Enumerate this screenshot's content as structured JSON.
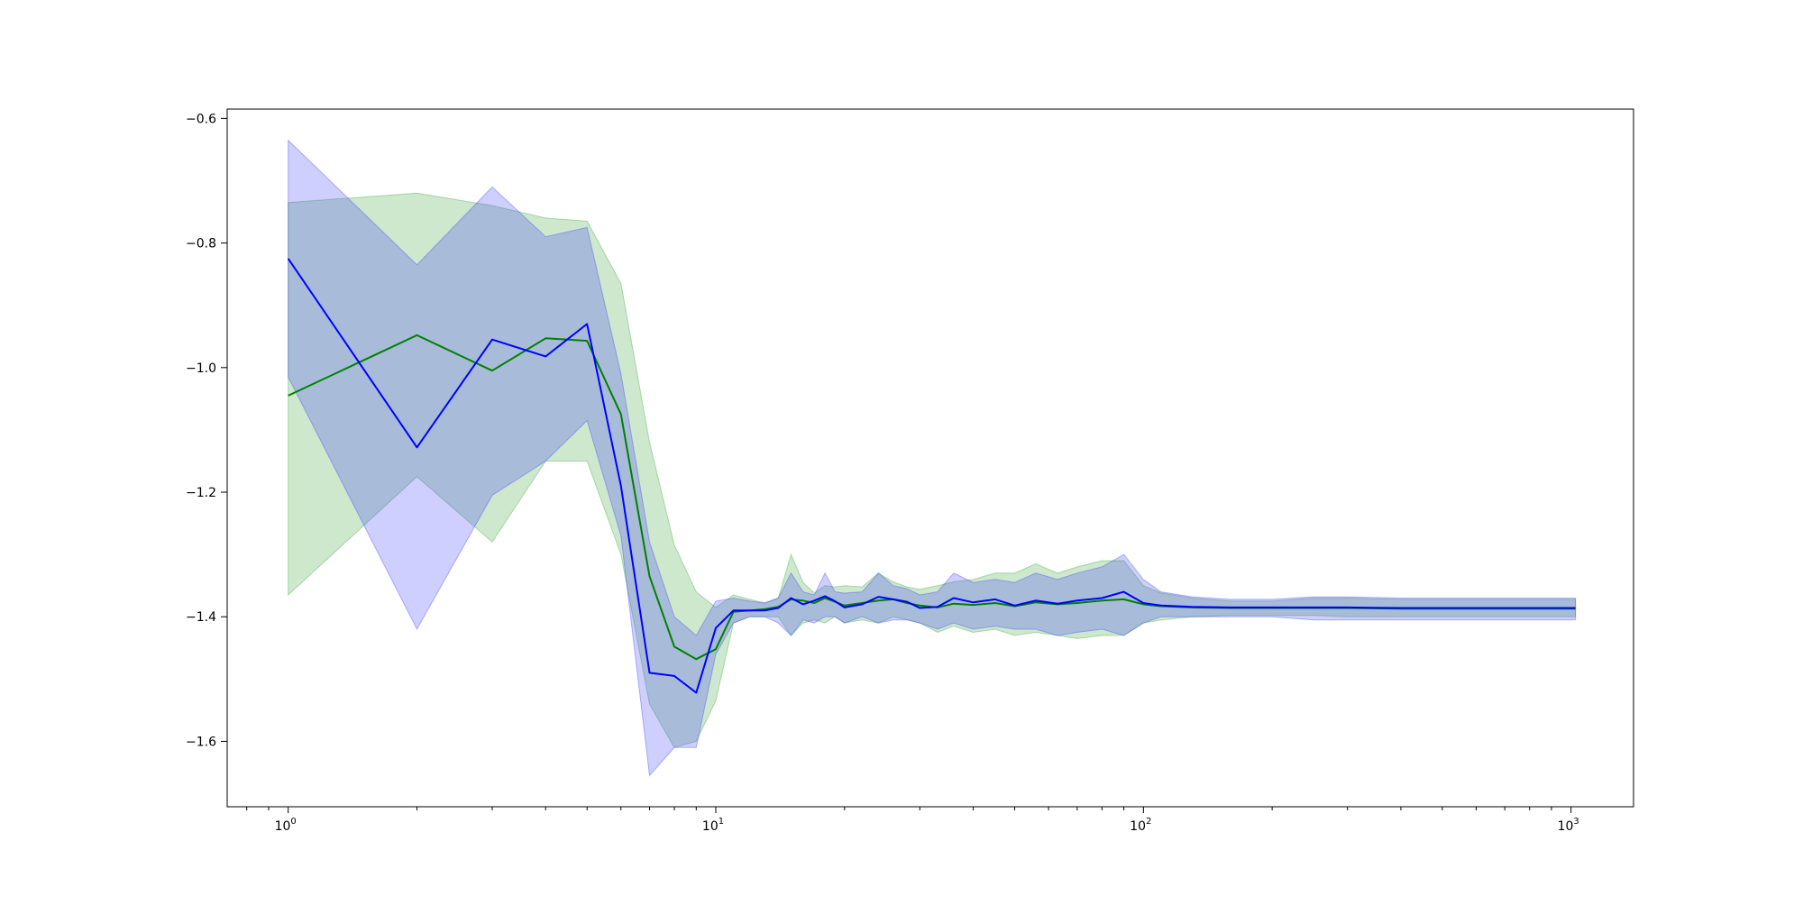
{
  "chart_data": {
    "type": "line",
    "title": "",
    "xlabel": "",
    "ylabel": "",
    "xscale": "log",
    "xlim": [
      0.72,
      1400
    ],
    "ylim": [
      -1.705,
      -0.585
    ],
    "grid": false,
    "legend": "none",
    "x_ticks": [
      {
        "base": "10",
        "exp": "0",
        "value": 1
      },
      {
        "base": "10",
        "exp": "1",
        "value": 10
      },
      {
        "base": "10",
        "exp": "2",
        "value": 100
      },
      {
        "base": "10",
        "exp": "3",
        "value": 1000
      }
    ],
    "y_ticks": [
      {
        "label": "−0.6",
        "value": -0.6
      },
      {
        "label": "−0.8",
        "value": -0.8
      },
      {
        "label": "−1.0",
        "value": -1.0
      },
      {
        "label": "−1.2",
        "value": -1.2
      },
      {
        "label": "−1.4",
        "value": -1.4
      },
      {
        "label": "−1.6",
        "value": -1.6
      }
    ],
    "series": [
      {
        "color": "#008000",
        "fill_color": "#2ca02c",
        "x": [
          1,
          2,
          3,
          4,
          5,
          6,
          7,
          8,
          9,
          10,
          11,
          12,
          13,
          14,
          15,
          16,
          17,
          18,
          19,
          20,
          22,
          24,
          26,
          28,
          30,
          33,
          36,
          40,
          45,
          50,
          56,
          63,
          70,
          80,
          90,
          100,
          110,
          130,
          160,
          200,
          250,
          300,
          400,
          500,
          600,
          700,
          800,
          900,
          1024
        ],
        "mean": [
          -1.045,
          -0.948,
          -1.005,
          -0.953,
          -0.957,
          -1.075,
          -1.335,
          -1.448,
          -1.468,
          -1.452,
          -1.392,
          -1.39,
          -1.388,
          -1.384,
          -1.372,
          -1.374,
          -1.378,
          -1.37,
          -1.376,
          -1.382,
          -1.378,
          -1.374,
          -1.372,
          -1.378,
          -1.382,
          -1.385,
          -1.379,
          -1.381,
          -1.378,
          -1.383,
          -1.377,
          -1.38,
          -1.378,
          -1.374,
          -1.372,
          -1.38,
          -1.383,
          -1.385,
          -1.386,
          -1.386,
          -1.386,
          -1.386,
          -1.387,
          -1.387,
          -1.387,
          -1.387,
          -1.387,
          -1.387,
          -1.387
        ],
        "upper": [
          -0.735,
          -0.72,
          -0.74,
          -0.76,
          -0.765,
          -0.865,
          -1.12,
          -1.285,
          -1.36,
          -1.385,
          -1.365,
          -1.372,
          -1.378,
          -1.37,
          -1.3,
          -1.345,
          -1.362,
          -1.35,
          -1.352,
          -1.35,
          -1.352,
          -1.33,
          -1.344,
          -1.352,
          -1.356,
          -1.35,
          -1.344,
          -1.34,
          -1.33,
          -1.33,
          -1.315,
          -1.33,
          -1.32,
          -1.31,
          -1.31,
          -1.35,
          -1.362,
          -1.37,
          -1.375,
          -1.375,
          -1.37,
          -1.37,
          -1.372,
          -1.372,
          -1.372,
          -1.372,
          -1.372,
          -1.372,
          -1.372
        ],
        "lower": [
          -1.365,
          -1.175,
          -1.28,
          -1.15,
          -1.15,
          -1.3,
          -1.54,
          -1.61,
          -1.6,
          -1.535,
          -1.41,
          -1.4,
          -1.4,
          -1.4,
          -1.43,
          -1.41,
          -1.405,
          -1.41,
          -1.4,
          -1.41,
          -1.405,
          -1.41,
          -1.4,
          -1.405,
          -1.41,
          -1.425,
          -1.415,
          -1.425,
          -1.42,
          -1.43,
          -1.425,
          -1.43,
          -1.435,
          -1.43,
          -1.43,
          -1.41,
          -1.405,
          -1.4,
          -1.398,
          -1.398,
          -1.398,
          -1.4,
          -1.4,
          -1.4,
          -1.4,
          -1.4,
          -1.4,
          -1.4,
          -1.4
        ]
      },
      {
        "color": "#0000ff",
        "fill_color": "#3333ff",
        "x": [
          1,
          2,
          3,
          4,
          5,
          6,
          7,
          8,
          9,
          10,
          11,
          12,
          13,
          14,
          15,
          16,
          17,
          18,
          19,
          20,
          22,
          24,
          26,
          28,
          30,
          33,
          36,
          40,
          45,
          50,
          56,
          63,
          70,
          80,
          90,
          100,
          110,
          130,
          160,
          200,
          250,
          300,
          400,
          500,
          600,
          700,
          800,
          900,
          1024
        ],
        "mean": [
          -0.825,
          -1.128,
          -0.955,
          -0.982,
          -0.93,
          -1.19,
          -1.49,
          -1.495,
          -1.522,
          -1.418,
          -1.39,
          -1.39,
          -1.39,
          -1.386,
          -1.37,
          -1.38,
          -1.374,
          -1.367,
          -1.375,
          -1.385,
          -1.38,
          -1.368,
          -1.372,
          -1.376,
          -1.386,
          -1.384,
          -1.37,
          -1.377,
          -1.372,
          -1.382,
          -1.374,
          -1.379,
          -1.374,
          -1.37,
          -1.36,
          -1.378,
          -1.382,
          -1.384,
          -1.385,
          -1.385,
          -1.385,
          -1.385,
          -1.386,
          -1.386,
          -1.386,
          -1.386,
          -1.386,
          -1.386,
          -1.386
        ],
        "upper": [
          -0.635,
          -0.835,
          -0.71,
          -0.79,
          -0.775,
          -1.01,
          -1.28,
          -1.4,
          -1.43,
          -1.375,
          -1.37,
          -1.375,
          -1.378,
          -1.37,
          -1.33,
          -1.36,
          -1.365,
          -1.33,
          -1.36,
          -1.362,
          -1.36,
          -1.33,
          -1.35,
          -1.355,
          -1.365,
          -1.36,
          -1.33,
          -1.345,
          -1.34,
          -1.345,
          -1.33,
          -1.34,
          -1.33,
          -1.32,
          -1.3,
          -1.34,
          -1.36,
          -1.368,
          -1.372,
          -1.372,
          -1.368,
          -1.368,
          -1.37,
          -1.37,
          -1.37,
          -1.37,
          -1.37,
          -1.37,
          -1.37
        ],
        "lower": [
          -1.015,
          -1.42,
          -1.205,
          -1.15,
          -1.085,
          -1.27,
          -1.655,
          -1.61,
          -1.61,
          -1.46,
          -1.41,
          -1.4,
          -1.4,
          -1.41,
          -1.43,
          -1.405,
          -1.41,
          -1.4,
          -1.4,
          -1.41,
          -1.4,
          -1.41,
          -1.405,
          -1.405,
          -1.41,
          -1.42,
          -1.41,
          -1.42,
          -1.415,
          -1.42,
          -1.42,
          -1.43,
          -1.425,
          -1.42,
          -1.43,
          -1.41,
          -1.4,
          -1.4,
          -1.4,
          -1.4,
          -1.405,
          -1.405,
          -1.405,
          -1.405,
          -1.405,
          -1.405,
          -1.405,
          -1.405,
          -1.405
        ]
      }
    ]
  }
}
